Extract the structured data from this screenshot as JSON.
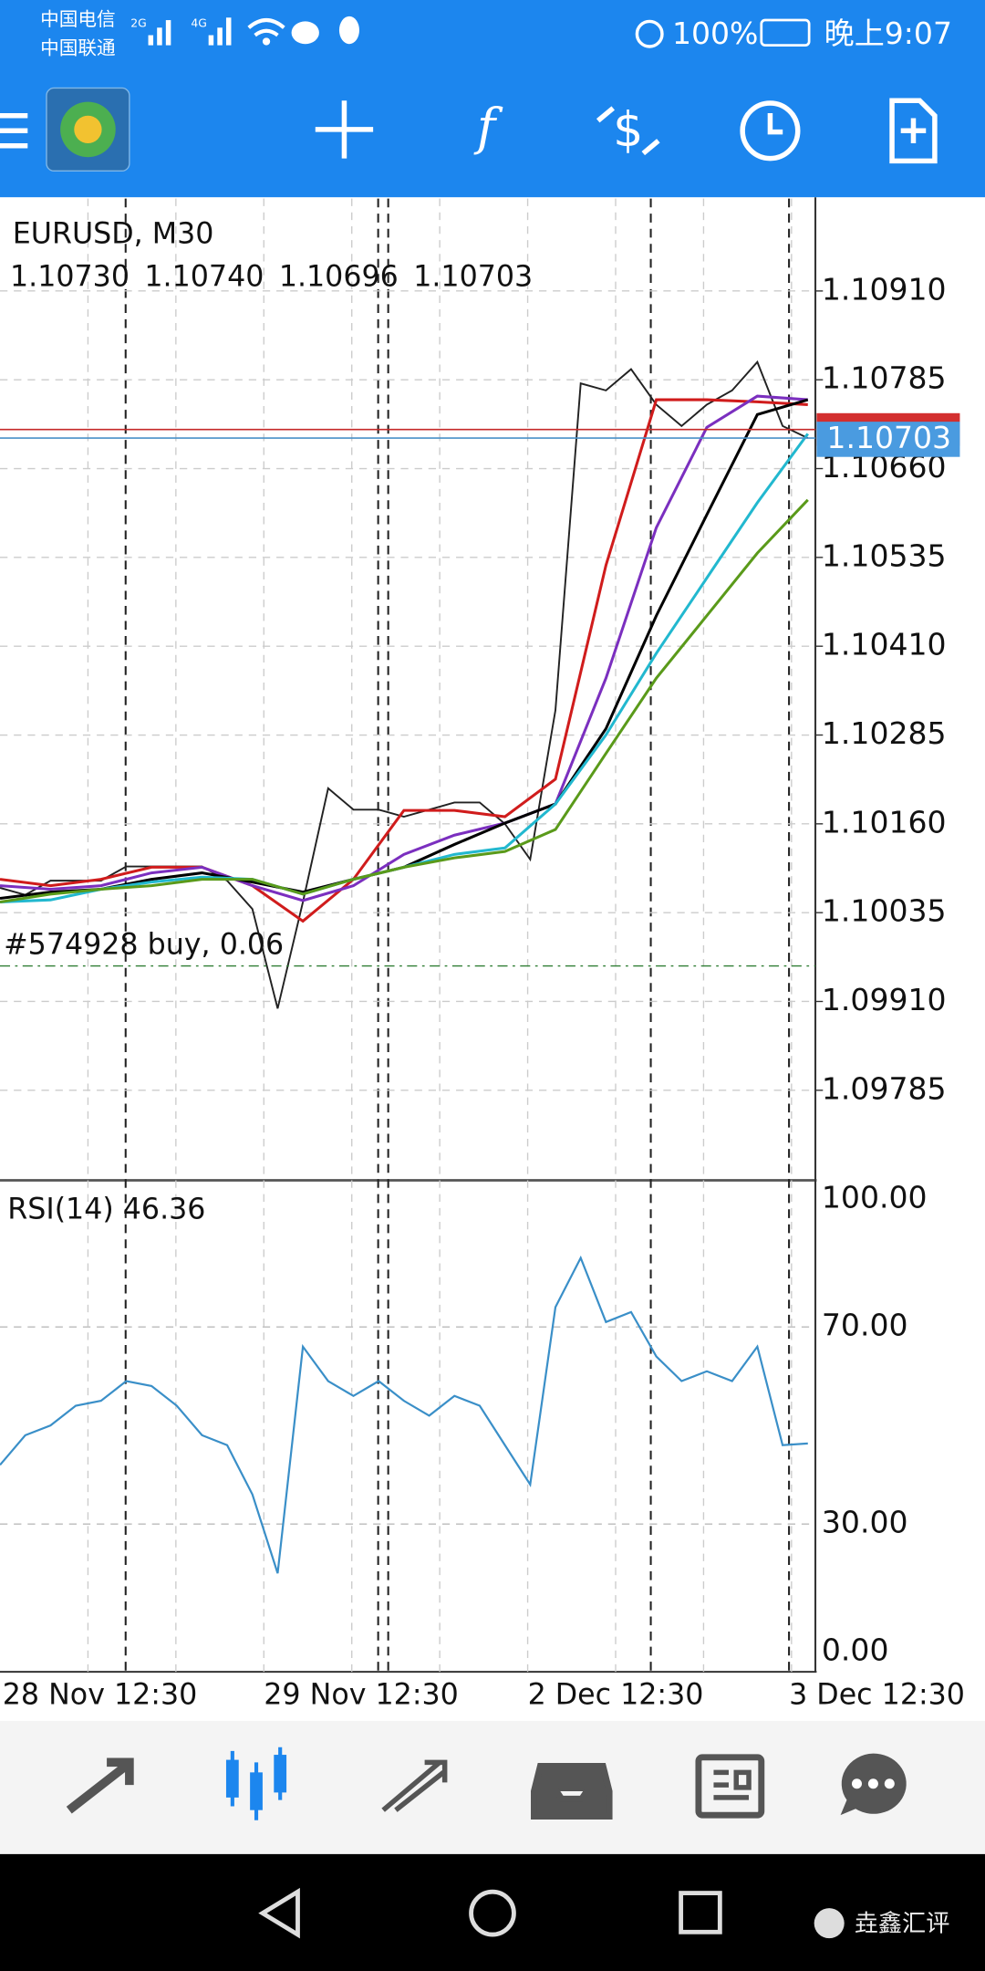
{
  "status_bar": {
    "carrier1": "中国电信",
    "carrier2": "中国联通",
    "net1": "2G",
    "net2": "4G",
    "battery": "100%",
    "time": "晚上9:07"
  },
  "chart": {
    "symbol": "EURUSD, M30",
    "ohlc": [
      "1.10730",
      "1.10740",
      "1.10696",
      "1.10703"
    ],
    "ylim": [
      1.0966,
      1.1104
    ],
    "yticks": [
      {
        "value": 1.1091,
        "label": "1.10910"
      },
      {
        "value": 1.10785,
        "label": "1.10785"
      },
      {
        "value": 1.1066,
        "label": "1.10660"
      },
      {
        "value": 1.10535,
        "label": "1.10535"
      },
      {
        "value": 1.1041,
        "label": "1.10410"
      },
      {
        "value": 1.10285,
        "label": "1.10285"
      },
      {
        "value": 1.1016,
        "label": "1.10160"
      },
      {
        "value": 1.10035,
        "label": "1.10035"
      },
      {
        "value": 1.0991,
        "label": "1.09910"
      },
      {
        "value": 1.09785,
        "label": "1.09785"
      }
    ],
    "close": [
      1.1007,
      1.1006,
      1.1008,
      1.1008,
      1.1008,
      1.101,
      1.101,
      1.101,
      1.101,
      1.1008,
      1.1004,
      1.099,
      1.1005,
      1.1021,
      1.1018,
      1.1018,
      1.1017,
      1.1018,
      1.1019,
      1.1019,
      1.1016,
      1.1011,
      1.1032,
      1.1078,
      1.1077,
      1.108,
      1.1075,
      1.1072,
      1.1075,
      1.1077,
      1.1081,
      1.1072,
      1.10703
    ],
    "moving_averages": [
      {
        "color": "#d01c1c",
        "values": [
          1.10082,
          1.10073,
          1.10082,
          1.10099,
          1.10099,
          1.10073,
          1.10023,
          1.10082,
          1.10179,
          1.10179,
          1.1017,
          1.10223,
          1.10524,
          1.10757,
          1.10757,
          1.10754,
          1.1075
        ]
      },
      {
        "color": "#7b2fbf",
        "values": [
          1.10073,
          1.10068,
          1.10073,
          1.10091,
          1.10099,
          1.10073,
          1.10052,
          1.10073,
          1.10117,
          1.10144,
          1.10161,
          1.10188,
          1.10365,
          1.10577,
          1.10718,
          1.10762,
          1.10757
        ]
      },
      {
        "color": "#000000",
        "values": [
          1.10055,
          1.10064,
          1.10068,
          1.10082,
          1.10091,
          1.10078,
          1.10064,
          1.10082,
          1.10099,
          1.10131,
          1.10161,
          1.10188,
          1.10294,
          1.10453,
          1.10595,
          1.10736,
          1.10757
        ]
      },
      {
        "color": "#22b8cf",
        "values": [
          1.1005,
          1.10053,
          1.10068,
          1.10078,
          1.10085,
          1.10082,
          1.10061,
          1.10082,
          1.10099,
          1.10117,
          1.10126,
          1.10188,
          1.10285,
          1.104,
          1.10506,
          1.10612,
          1.10709
        ]
      },
      {
        "color": "#5a9a1a",
        "values": [
          1.1005,
          1.10061,
          1.10068,
          1.10073,
          1.10082,
          1.10082,
          1.10061,
          1.10082,
          1.10099,
          1.10112,
          1.10121,
          1.10152,
          1.10259,
          1.10365,
          1.10453,
          1.10541,
          1.10616
        ]
      }
    ],
    "bid": {
      "value": 1.10703,
      "label": "1.10703"
    },
    "ask": 1.10715,
    "order": {
      "label": "#574928 buy, 0.06",
      "price": 1.0996
    },
    "rsi": {
      "label": "RSI(14) 46.36",
      "ylim": [
        0,
        100
      ],
      "yticks": [
        {
          "value": 100,
          "label": "100.00"
        },
        {
          "value": 70,
          "label": "70.00"
        },
        {
          "value": 30,
          "label": "30.00"
        },
        {
          "value": 0,
          "label": "0.00"
        }
      ],
      "values": [
        42,
        48,
        50,
        54,
        55,
        59,
        58,
        54,
        48,
        46,
        36,
        20,
        66,
        59,
        56,
        59,
        55,
        52,
        56,
        54,
        46,
        38,
        74,
        84,
        71,
        73,
        64,
        59,
        61,
        59,
        66,
        46,
        46.36
      ]
    },
    "x_labels": [
      "28 Nov 12:30",
      "29 Nov 12:30",
      "2 Dec 12:30",
      "3 Dec 12:30"
    ]
  },
  "watermark": "垚鑫汇评"
}
